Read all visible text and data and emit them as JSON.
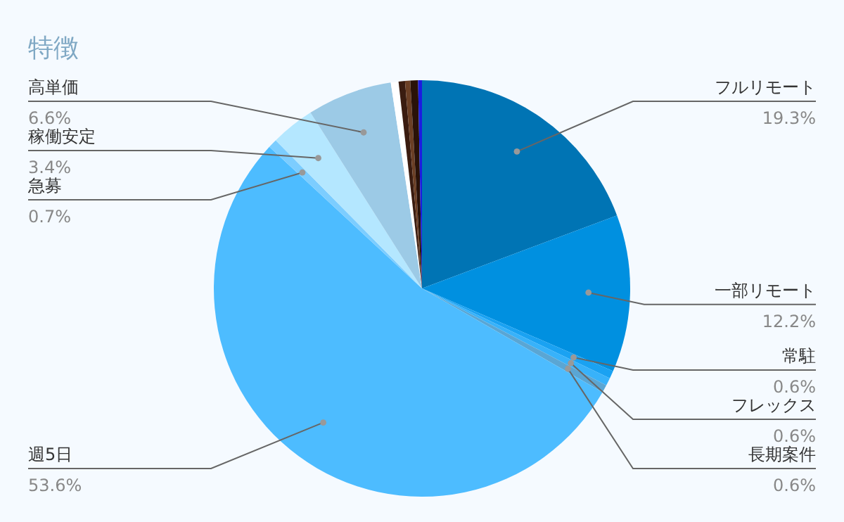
{
  "chart_data": {
    "type": "pie",
    "title": "特徴",
    "categories": [
      "フルリモート",
      "一部リモート",
      "常駐",
      "フレックス",
      "長期案件",
      "週5日",
      "急募",
      "稼働安定",
      "高単価",
      null,
      null,
      null,
      null,
      null
    ],
    "values": [
      19.3,
      12.2,
      0.6,
      0.6,
      0.6,
      53.6,
      0.7,
      3.4,
      6.6,
      0.6,
      0.5,
      0.4,
      0.6,
      0.3
    ],
    "value_labels": [
      "19.3%",
      "12.2%",
      "0.6%",
      "0.6%",
      "0.6%",
      "53.6%",
      "0.7%",
      "3.4%",
      "6.6%",
      null,
      null,
      null,
      null,
      null
    ],
    "colors": [
      "#0074b4",
      "#0090e0",
      "#1aa2f2",
      "#38b2fa",
      "#5aa6d4",
      "#4dbcff",
      "#7ccdff",
      "#b4e7ff",
      "#9ccae6",
      "#ffffff",
      "#3a1c10",
      "#6b3f25",
      "#2a1208",
      "#1c1ce0"
    ],
    "legend": false
  }
}
